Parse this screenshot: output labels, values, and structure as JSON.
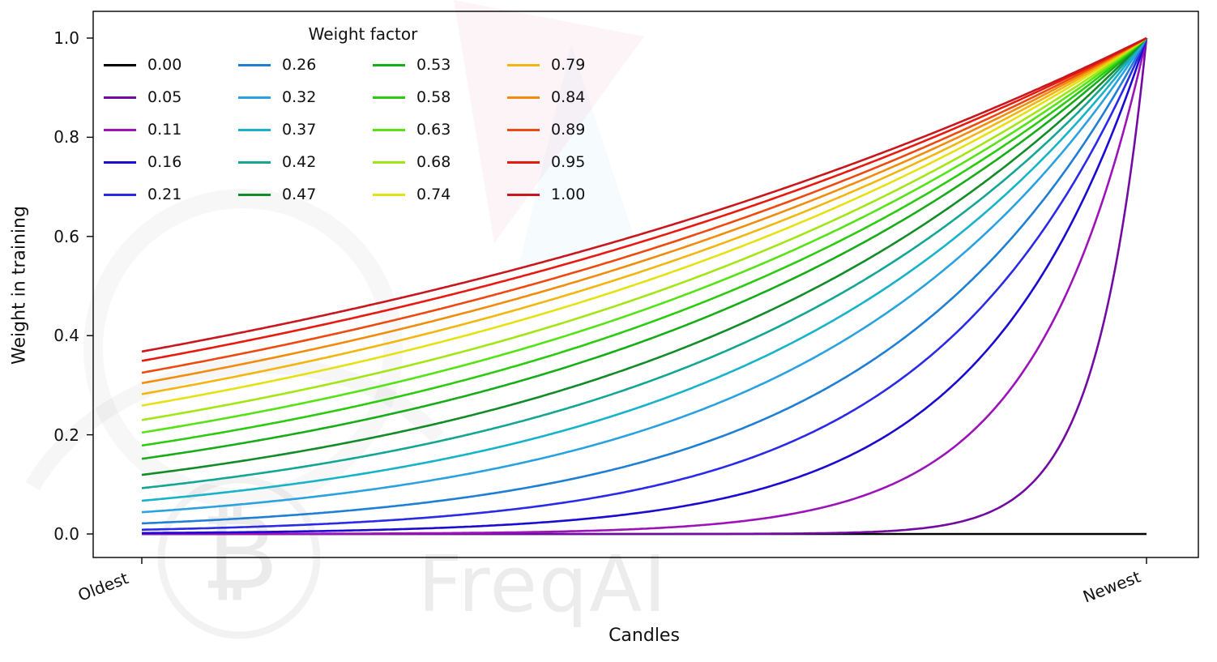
{
  "watermark": {
    "text": "FreqAI",
    "bitcoin_symbol": "₿"
  },
  "chart_data": {
    "type": "line",
    "title": "",
    "xlabel": "Candles",
    "ylabel": "Weight in training",
    "x_tick_labels": [
      "Oldest",
      "Newest"
    ],
    "y_ticks": [
      0.0,
      0.2,
      0.4,
      0.6,
      0.8,
      1.0
    ],
    "y_tick_labels": [
      "0.0",
      "0.2",
      "0.4",
      "0.6",
      "0.8",
      "1.0"
    ],
    "xlim": [
      0,
      1
    ],
    "ylim": [
      0,
      1
    ],
    "grid": false,
    "legend": {
      "title": "Weight factor",
      "position": "upper left",
      "columns": 4,
      "column_major": true
    },
    "curve_formula": "weight(t) = exp(-(1 - t) / weight_factor), t from 0 at Oldest to 1 at Newest; weight_factor 0 is flat 0",
    "series": [
      {
        "label": "0.00",
        "weight_factor": 0.0,
        "color": "#000000",
        "oldest_weight": 0.0,
        "newest_weight": 0.0
      },
      {
        "label": "0.05",
        "weight_factor": 0.05,
        "color": "#730ba3",
        "oldest_weight": 0.0,
        "newest_weight": 1.0
      },
      {
        "label": "0.11",
        "weight_factor": 0.11,
        "color": "#9c13b8",
        "oldest_weight": 0.0001,
        "newest_weight": 1.0
      },
      {
        "label": "0.16",
        "weight_factor": 0.16,
        "color": "#1b0ad1",
        "oldest_weight": 0.0019,
        "newest_weight": 1.0
      },
      {
        "label": "0.21",
        "weight_factor": 0.21,
        "color": "#2a2ae8",
        "oldest_weight": 0.0086,
        "newest_weight": 1.0
      },
      {
        "label": "0.26",
        "weight_factor": 0.26,
        "color": "#1f7fd4",
        "oldest_weight": 0.0214,
        "newest_weight": 1.0
      },
      {
        "label": "0.32",
        "weight_factor": 0.32,
        "color": "#2aa2e0",
        "oldest_weight": 0.0439,
        "newest_weight": 1.0
      },
      {
        "label": "0.37",
        "weight_factor": 0.37,
        "color": "#17b3c9",
        "oldest_weight": 0.067,
        "newest_weight": 1.0
      },
      {
        "label": "0.42",
        "weight_factor": 0.42,
        "color": "#12a693",
        "oldest_weight": 0.0924,
        "newest_weight": 1.0
      },
      {
        "label": "0.47",
        "weight_factor": 0.47,
        "color": "#128c28",
        "oldest_weight": 0.1191,
        "newest_weight": 1.0
      },
      {
        "label": "0.53",
        "weight_factor": 0.53,
        "color": "#16ad17",
        "oldest_weight": 0.1515,
        "newest_weight": 1.0
      },
      {
        "label": "0.58",
        "weight_factor": 0.58,
        "color": "#2bcb0e",
        "oldest_weight": 0.1783,
        "newest_weight": 1.0
      },
      {
        "label": "0.63",
        "weight_factor": 0.63,
        "color": "#55e316",
        "oldest_weight": 0.2043,
        "newest_weight": 1.0
      },
      {
        "label": "0.68",
        "weight_factor": 0.68,
        "color": "#a2e613",
        "oldest_weight": 0.2295,
        "newest_weight": 1.0
      },
      {
        "label": "0.74",
        "weight_factor": 0.74,
        "color": "#e5e112",
        "oldest_weight": 0.2588,
        "newest_weight": 1.0
      },
      {
        "label": "0.79",
        "weight_factor": 0.79,
        "color": "#f2b60f",
        "oldest_weight": 0.2822,
        "newest_weight": 1.0
      },
      {
        "label": "0.84",
        "weight_factor": 0.84,
        "color": "#f28c0d",
        "oldest_weight": 0.3042,
        "newest_weight": 1.0
      },
      {
        "label": "0.89",
        "weight_factor": 0.89,
        "color": "#ed4a10",
        "oldest_weight": 0.325,
        "newest_weight": 1.0
      },
      {
        "label": "0.95",
        "weight_factor": 0.95,
        "color": "#e81a10",
        "oldest_weight": 0.349,
        "newest_weight": 1.0
      },
      {
        "label": "1.00",
        "weight_factor": 1.0,
        "color": "#c9171e",
        "oldest_weight": 0.3679,
        "newest_weight": 1.0
      }
    ]
  }
}
